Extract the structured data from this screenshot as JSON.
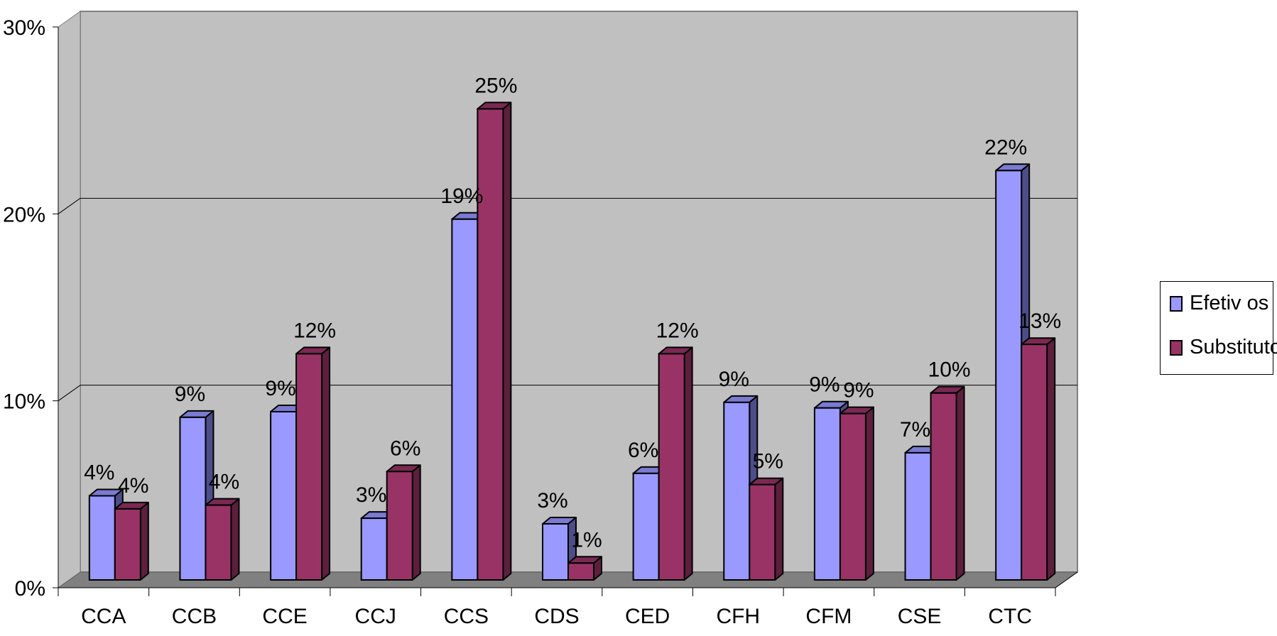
{
  "chart_data": {
    "type": "bar",
    "title": "",
    "xlabel": "",
    "ylabel": "",
    "categories": [
      "CCA",
      "CCB",
      "CCE",
      "CCJ",
      "CCS",
      "CDS",
      "CED",
      "CFH",
      "CFM",
      "CSE",
      "CTC"
    ],
    "series": [
      {
        "name": "Efetiv os",
        "values": [
          4.5,
          8.7,
          9.0,
          3.3,
          19.3,
          3.0,
          5.7,
          9.5,
          9.2,
          6.8,
          21.9
        ],
        "labels": [
          "4%",
          "9%",
          "9%",
          "3%",
          "19%",
          "3%",
          "6%",
          "9%",
          "9%",
          "7%",
          "22%"
        ],
        "color": "#9999ff",
        "side_color": "#4d4d8a",
        "top_color": "#7a7ad1"
      },
      {
        "name": "Substitutos",
        "values": [
          3.8,
          4.0,
          12.1,
          5.8,
          25.2,
          0.9,
          12.1,
          5.1,
          8.9,
          10.0,
          12.6
        ],
        "labels": [
          "4%",
          "4%",
          "12%",
          "6%",
          "25%",
          "1%",
          "12%",
          "5%",
          "9%",
          "10%",
          "13%"
        ],
        "color": "#993366",
        "side_color": "#5c1f3d",
        "top_color": "#7a2952"
      }
    ],
    "y_ticks": [
      "0%",
      "10%",
      "20%",
      "30%"
    ],
    "ylim": [
      0,
      30
    ],
    "grid": true,
    "legend_position": "right",
    "colors": {
      "wall": "#c0c0c0",
      "floor": "#808080",
      "gridline": "#000000"
    }
  }
}
